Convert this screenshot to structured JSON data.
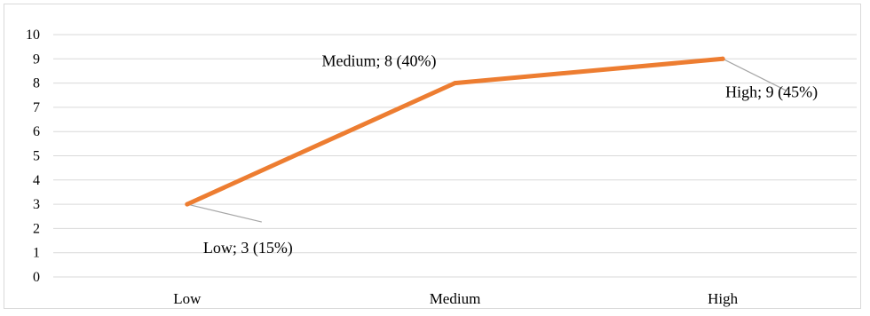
{
  "chart_data": {
    "type": "line",
    "categories": [
      "Low",
      "Medium",
      "High"
    ],
    "series": [
      {
        "values": [
          3,
          8,
          9
        ],
        "color": "#ED7D31",
        "data_labels": [
          "Low; 3 (15%)",
          "Medium; 8 (40%)",
          "High; 9 (45%)"
        ]
      }
    ],
    "ylim": [
      0,
      10
    ],
    "yticks": [
      "0",
      "1",
      "2",
      "3",
      "4",
      "5",
      "6",
      "7",
      "8",
      "9",
      "10"
    ],
    "grid": true,
    "legend": "none",
    "leader_line_color": "#A6A6A6",
    "gridline_color": "#D9D9D9"
  }
}
